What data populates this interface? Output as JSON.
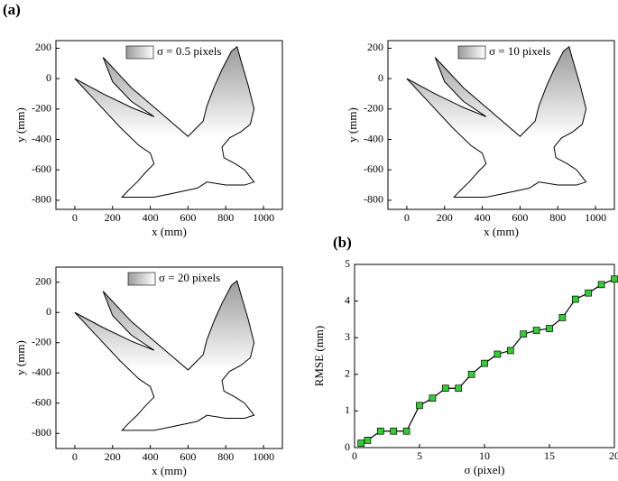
{
  "panel_labels": [
    "(a)",
    "(b)"
  ],
  "chart_data": [
    {
      "type": "shape",
      "xlabel": "x (mm)",
      "ylabel": "y (mm)",
      "xlim": [
        -100,
        1100
      ],
      "ylim": [
        -860,
        250
      ],
      "xticks": [
        0,
        200,
        400,
        600,
        800,
        1000
      ],
      "yticks": [
        -800,
        -600,
        -400,
        -200,
        0,
        200
      ],
      "legend": "upper right",
      "series": [
        {
          "name": "σ = 0.5 pixels",
          "color": "#9a9a9a",
          "x": [
            0,
            150,
            300,
            420,
            300,
            200,
            150,
            180,
            300,
            450,
            600,
            680,
            700,
            740,
            780,
            830,
            860,
            880,
            920,
            950,
            930,
            880,
            820,
            780,
            790,
            850,
            900,
            950,
            900,
            800,
            700,
            650,
            500,
            420,
            300,
            250,
            280,
            330,
            380,
            420,
            400,
            340,
            240,
            120
          ],
          "y": [
            0,
            -100,
            -190,
            -250,
            -150,
            -20,
            140,
            100,
            -60,
            -220,
            -380,
            -280,
            -180,
            -50,
            60,
            180,
            210,
            120,
            -50,
            -200,
            -300,
            -350,
            -390,
            -450,
            -520,
            -560,
            -600,
            -680,
            -700,
            -700,
            -680,
            -720,
            -760,
            -780,
            -780,
            -780,
            -740,
            -680,
            -610,
            -560,
            -490,
            -440,
            -320,
            -160
          ]
        }
      ]
    },
    {
      "type": "shape",
      "xlabel": "x (mm)",
      "ylabel": "y (mm)",
      "xlim": [
        -100,
        1100
      ],
      "ylim": [
        -860,
        250
      ],
      "xticks": [
        0,
        200,
        400,
        600,
        800,
        1000
      ],
      "yticks": [
        -800,
        -600,
        -400,
        -200,
        0,
        200
      ],
      "legend": "upper right",
      "series": [
        {
          "name": "σ = 10 pixels",
          "color": "#9a9a9a",
          "x": [
            0,
            150,
            300,
            420,
            300,
            200,
            150,
            180,
            300,
            450,
            600,
            680,
            700,
            740,
            780,
            830,
            860,
            880,
            920,
            950,
            930,
            880,
            820,
            780,
            790,
            850,
            900,
            950,
            900,
            800,
            700,
            650,
            500,
            420,
            300,
            250,
            280,
            330,
            380,
            420,
            400,
            340,
            240,
            120
          ],
          "y": [
            0,
            -100,
            -190,
            -250,
            -150,
            -20,
            140,
            100,
            -60,
            -220,
            -380,
            -280,
            -180,
            -50,
            60,
            180,
            210,
            120,
            -50,
            -200,
            -300,
            -350,
            -390,
            -450,
            -520,
            -560,
            -600,
            -680,
            -700,
            -700,
            -680,
            -720,
            -760,
            -780,
            -780,
            -780,
            -740,
            -680,
            -610,
            -560,
            -490,
            -440,
            -320,
            -160
          ]
        }
      ]
    },
    {
      "type": "shape",
      "xlabel": "x (mm)",
      "ylabel": "y (mm)",
      "xlim": [
        -100,
        1100
      ],
      "ylim": [
        -900,
        300
      ],
      "xticks": [
        0,
        200,
        400,
        600,
        800,
        1000
      ],
      "yticks": [
        -800,
        -600,
        -400,
        -200,
        0,
        200
      ],
      "legend": "upper center",
      "series": [
        {
          "name": "σ = 20 pixels",
          "color": "#9a9a9a",
          "x": [
            0,
            150,
            300,
            420,
            300,
            200,
            150,
            180,
            300,
            450,
            600,
            680,
            700,
            740,
            780,
            830,
            860,
            880,
            920,
            950,
            930,
            880,
            820,
            780,
            790,
            850,
            900,
            950,
            900,
            800,
            700,
            650,
            500,
            420,
            300,
            250,
            280,
            330,
            380,
            420,
            400,
            340,
            240,
            120
          ],
          "y": [
            0,
            -100,
            -190,
            -250,
            -150,
            -20,
            140,
            100,
            -60,
            -220,
            -380,
            -280,
            -180,
            -50,
            60,
            180,
            210,
            120,
            -50,
            -200,
            -300,
            -350,
            -390,
            -450,
            -520,
            -560,
            -600,
            -680,
            -700,
            -700,
            -680,
            -720,
            -760,
            -780,
            -780,
            -780,
            -740,
            -680,
            -610,
            -560,
            -490,
            -440,
            -320,
            -160
          ]
        }
      ]
    },
    {
      "type": "line",
      "xlabel": "σ (pixel)",
      "ylabel": "RMSE (mm)",
      "xlim": [
        0,
        20
      ],
      "ylim": [
        0,
        5
      ],
      "xticks": [
        0,
        5,
        10,
        15,
        20
      ],
      "yticks": [
        0,
        1,
        2,
        3,
        4,
        5
      ],
      "color": "#000000",
      "marker_color": "#33cc33",
      "x": [
        0.5,
        1,
        2,
        3,
        4,
        5,
        6,
        7,
        8,
        9,
        10,
        11,
        12,
        13,
        14,
        15,
        16,
        17,
        18,
        19,
        20
      ],
      "values": [
        0.12,
        0.2,
        0.45,
        0.45,
        0.45,
        1.15,
        1.35,
        1.62,
        1.62,
        2.0,
        2.3,
        2.55,
        2.65,
        3.1,
        3.2,
        3.25,
        3.55,
        4.05,
        4.22,
        4.45,
        4.6
      ]
    }
  ]
}
